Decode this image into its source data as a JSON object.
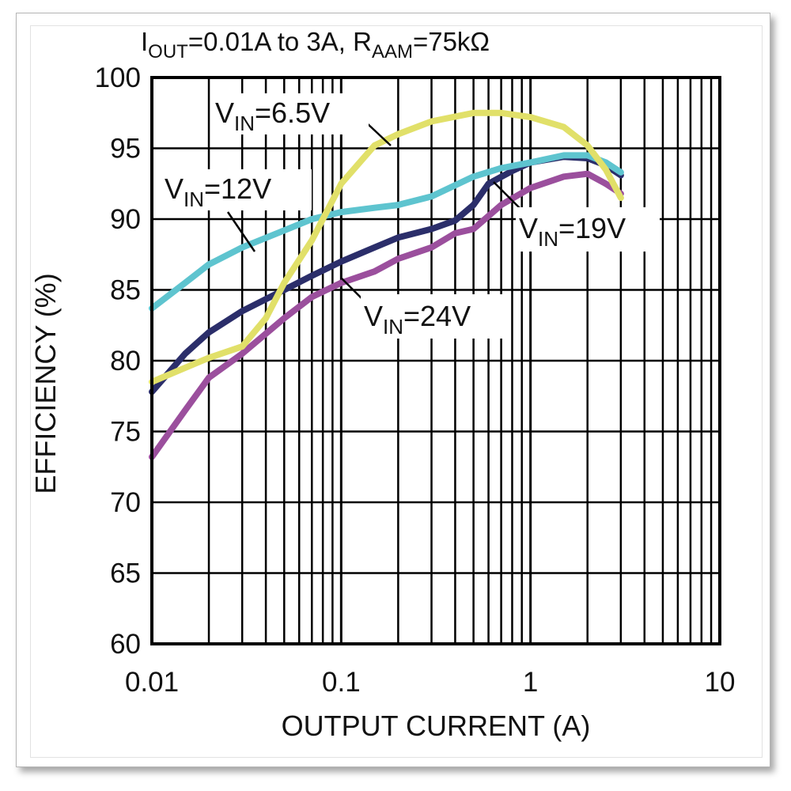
{
  "chart_data": {
    "type": "line",
    "title_parts": {
      "p1": "I",
      "p1_sub": "OUT",
      "p2": "=0.01A to 3A, R",
      "p2_sub": "AAM",
      "p3": "=75kΩ"
    },
    "xlabel": "OUTPUT CURRENT (A)",
    "ylabel": "EFFICIENCY (%)",
    "x_scale": "log",
    "xlim": [
      0.01,
      10
    ],
    "ylim": [
      60,
      100
    ],
    "grid": true,
    "x_ticks": [
      {
        "value": 0.01,
        "label": "0.01"
      },
      {
        "value": 0.1,
        "label": "0.1"
      },
      {
        "value": 1,
        "label": "1"
      },
      {
        "value": 10,
        "label": "10"
      }
    ],
    "y_ticks": [
      {
        "value": 100,
        "label": "100"
      },
      {
        "value": 95,
        "label": "95"
      },
      {
        "value": 90,
        "label": "90"
      },
      {
        "value": 85,
        "label": "85"
      },
      {
        "value": 80,
        "label": "80"
      },
      {
        "value": 75,
        "label": "75"
      },
      {
        "value": 70,
        "label": "70"
      },
      {
        "value": 65,
        "label": "65"
      },
      {
        "value": 60,
        "label": "60"
      }
    ],
    "series": [
      {
        "name_main": "V",
        "name_sub": "IN",
        "name_rest": "=19V",
        "color": "#2b2e6a",
        "points": [
          [
            0.01,
            77.8
          ],
          [
            0.015,
            80.5
          ],
          [
            0.02,
            82
          ],
          [
            0.03,
            83.5
          ],
          [
            0.05,
            85
          ],
          [
            0.07,
            86
          ],
          [
            0.1,
            87
          ],
          [
            0.15,
            88
          ],
          [
            0.2,
            88.7
          ],
          [
            0.3,
            89.3
          ],
          [
            0.4,
            89.9
          ],
          [
            0.5,
            91
          ],
          [
            0.6,
            92.5
          ],
          [
            0.8,
            93.4
          ],
          [
            1,
            94
          ],
          [
            1.5,
            94.4
          ],
          [
            2,
            94.3
          ],
          [
            2.5,
            93.8
          ],
          [
            3,
            93.1
          ]
        ]
      },
      {
        "name_main": "V",
        "name_sub": "IN",
        "name_rest": "=24V",
        "color": "#9b4f9d",
        "points": [
          [
            0.01,
            73.2
          ],
          [
            0.015,
            76.5
          ],
          [
            0.02,
            78.8
          ],
          [
            0.03,
            80.5
          ],
          [
            0.05,
            83
          ],
          [
            0.07,
            84.5
          ],
          [
            0.1,
            85.5
          ],
          [
            0.15,
            86.3
          ],
          [
            0.2,
            87.2
          ],
          [
            0.3,
            88
          ],
          [
            0.4,
            89
          ],
          [
            0.5,
            89.3
          ],
          [
            0.7,
            91
          ],
          [
            1,
            92.2
          ],
          [
            1.5,
            93
          ],
          [
            2,
            93.2
          ],
          [
            2.5,
            92.5
          ],
          [
            3,
            91.8
          ]
        ]
      },
      {
        "name_main": "V",
        "name_sub": "IN",
        "name_rest": "=12V",
        "color": "#5ec4cf",
        "points": [
          [
            0.01,
            83.7
          ],
          [
            0.015,
            85.5
          ],
          [
            0.02,
            86.8
          ],
          [
            0.03,
            88
          ],
          [
            0.05,
            89.2
          ],
          [
            0.07,
            90
          ],
          [
            0.1,
            90.5
          ],
          [
            0.15,
            90.8
          ],
          [
            0.2,
            91
          ],
          [
            0.3,
            91.6
          ],
          [
            0.5,
            93
          ],
          [
            0.7,
            93.6
          ],
          [
            1,
            94
          ],
          [
            1.5,
            94.5
          ],
          [
            2,
            94.5
          ],
          [
            2.5,
            94
          ],
          [
            3,
            93.3
          ]
        ]
      },
      {
        "name_main": "V",
        "name_sub": "IN",
        "name_rest": "=6.5V",
        "color": "#e1e069",
        "points": [
          [
            0.01,
            78.5
          ],
          [
            0.015,
            79.5
          ],
          [
            0.02,
            80.2
          ],
          [
            0.03,
            81
          ],
          [
            0.04,
            83
          ],
          [
            0.05,
            85.5
          ],
          [
            0.07,
            88.5
          ],
          [
            0.1,
            92.5
          ],
          [
            0.15,
            95.2
          ],
          [
            0.2,
            96
          ],
          [
            0.3,
            96.9
          ],
          [
            0.5,
            97.5
          ],
          [
            0.7,
            97.5
          ],
          [
            1,
            97.2
          ],
          [
            1.5,
            96.5
          ],
          [
            2,
            95.2
          ],
          [
            2.5,
            93.5
          ],
          [
            3,
            91.5
          ]
        ]
      }
    ]
  }
}
